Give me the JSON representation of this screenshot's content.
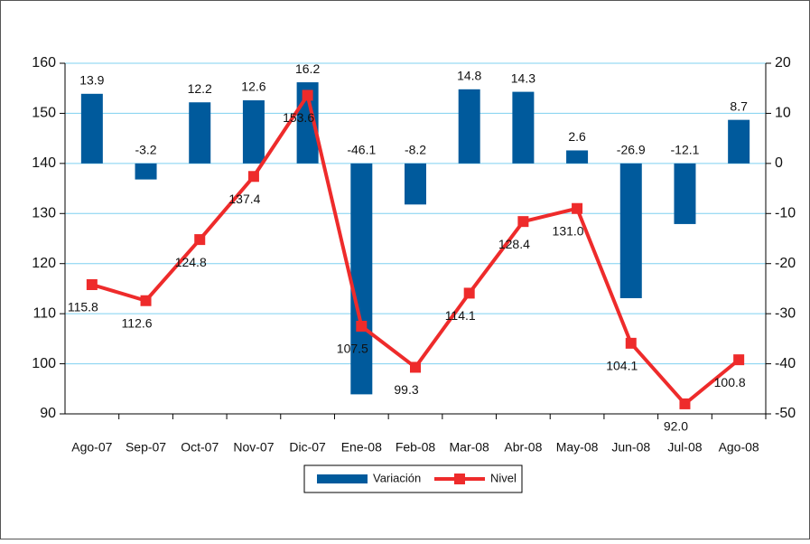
{
  "chart_data": {
    "type": "bar-line",
    "categories": [
      "Ago-07",
      "Sep-07",
      "Oct-07",
      "Nov-07",
      "Dic-07",
      "Ene-08",
      "Feb-08",
      "Mar-08",
      "Abr-08",
      "May-08",
      "Jun-08",
      "Jul-08",
      "Ago-08"
    ],
    "series": [
      {
        "name": "Variación",
        "type": "bar",
        "axis": "y2",
        "color": "#005a9c",
        "values": [
          13.9,
          -3.2,
          12.2,
          12.6,
          16.2,
          -46.1,
          -8.2,
          14.8,
          14.3,
          2.6,
          -26.9,
          -12.1,
          8.7
        ],
        "value_labels": [
          "13.9",
          "-3.2",
          "12.2",
          "12.6",
          "16.2",
          "-46.1",
          "-8.2",
          "14.8",
          "14.3",
          "2.6",
          "-26.9",
          "-12.1",
          "8.7"
        ]
      },
      {
        "name": "Nivel",
        "type": "line",
        "axis": "y",
        "color": "#ee2b2b",
        "values": [
          115.8,
          112.6,
          124.8,
          137.4,
          153.6,
          107.5,
          99.3,
          114.1,
          128.4,
          131.0,
          104.1,
          92.0,
          100.8
        ],
        "value_labels": [
          "115.8",
          "112.6",
          "124.8",
          "137.4",
          "153.6",
          "107.5",
          "99.3",
          "114.1",
          "128.4",
          "131.0",
          "104.1",
          "92.0",
          "100.8"
        ]
      }
    ],
    "ylim": [
      90,
      160
    ],
    "yticks": [
      90,
      100,
      110,
      120,
      130,
      140,
      150,
      160
    ],
    "y2lim": [
      -50,
      20
    ],
    "y2ticks": [
      -50,
      -40,
      -30,
      -20,
      -10,
      0,
      10,
      20
    ],
    "grid": true,
    "grid_color": "#7fd0f0",
    "legend": "bottom"
  }
}
